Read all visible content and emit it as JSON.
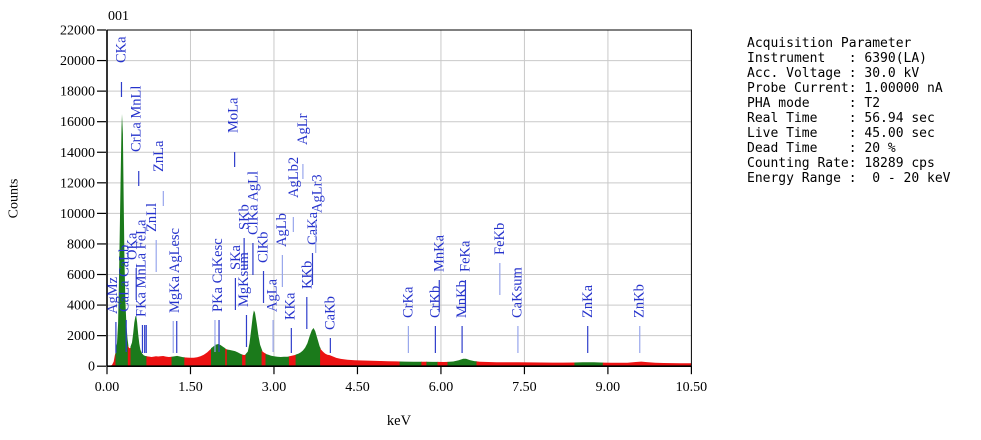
{
  "title": "001",
  "axes": {
    "x_label": "keV",
    "y_label": "Counts",
    "x_tick_values": [
      0,
      1.5,
      3,
      4.5,
      6,
      7.5,
      9,
      10.5
    ],
    "x_tick_labels": [
      "0.00",
      "1.50",
      "3.00",
      "4.50",
      "6.00",
      "7.50",
      "9.00",
      "10.50"
    ],
    "y_tick_values": [
      0,
      2000,
      4000,
      6000,
      8000,
      10000,
      12000,
      14000,
      16000,
      18000,
      20000,
      22000
    ]
  },
  "acquisition": {
    "lines": [
      "Acquisition Parameter",
      "Instrument   : 6390(LA)",
      "Acc. Voltage : 30.0 kV",
      "Probe Current: 1.00000 nA",
      "PHA mode     : T2",
      "Real Time    : 56.94 sec",
      "Live Time    : 45.00 sec",
      "Dead Time    : 20 %",
      "Counting Rate: 18289 cps",
      "Energy Range :  0 - 20 keV"
    ]
  },
  "chart_data": {
    "type": "area",
    "title": "001",
    "xlabel": "keV",
    "ylabel": "Counts",
    "xlim": [
      0,
      10.5
    ],
    "ylim": [
      0,
      22000
    ],
    "x_tick_step": 1.5,
    "y_tick_step": 2000,
    "grid": true,
    "colors": {
      "spectrum_red": "#ec1212",
      "spectrum_green": "#1b7a1b",
      "peak_label_blue": "#2633cc",
      "tick_dark_blue": "#2f3ecb",
      "tick_light_blue": "#98a6ec",
      "grid_gray": "#c9c9c9",
      "axis_black": "#000000"
    },
    "spectrum_points": [
      [
        0.0,
        0
      ],
      [
        0.05,
        20
      ],
      [
        0.09,
        80
      ],
      [
        0.12,
        300
      ],
      [
        0.14,
        700
      ],
      [
        0.165,
        1050
      ],
      [
        0.18,
        1500
      ],
      [
        0.2,
        2800
      ],
      [
        0.22,
        6500
      ],
      [
        0.245,
        12200
      ],
      [
        0.26,
        15600
      ],
      [
        0.27,
        16500
      ],
      [
        0.285,
        15200
      ],
      [
        0.3,
        10800
      ],
      [
        0.315,
        6800
      ],
      [
        0.33,
        4200
      ],
      [
        0.35,
        2600
      ],
      [
        0.37,
        1750
      ],
      [
        0.385,
        1350
      ],
      [
        0.4,
        1180
      ],
      [
        0.42,
        1200
      ],
      [
        0.435,
        1280
      ],
      [
        0.45,
        1550
      ],
      [
        0.47,
        2150
      ],
      [
        0.49,
        2850
      ],
      [
        0.51,
        3250
      ],
      [
        0.525,
        3300
      ],
      [
        0.54,
        2880
      ],
      [
        0.56,
        2100
      ],
      [
        0.58,
        1480
      ],
      [
        0.6,
        1080
      ],
      [
        0.63,
        830
      ],
      [
        0.66,
        720
      ],
      [
        0.69,
        670
      ],
      [
        0.72,
        650
      ],
      [
        0.76,
        625
      ],
      [
        0.8,
        605
      ],
      [
        0.84,
        625
      ],
      [
        0.88,
        655
      ],
      [
        0.92,
        635
      ],
      [
        0.96,
        645
      ],
      [
        1.01,
        665
      ],
      [
        1.06,
        625
      ],
      [
        1.11,
        605
      ],
      [
        1.17,
        620
      ],
      [
        1.22,
        655
      ],
      [
        1.26,
        675
      ],
      [
        1.31,
        635
      ],
      [
        1.36,
        595
      ],
      [
        1.4,
        575
      ],
      [
        1.45,
        560
      ],
      [
        1.5,
        552
      ],
      [
        1.56,
        558
      ],
      [
        1.62,
        582
      ],
      [
        1.68,
        645
      ],
      [
        1.74,
        745
      ],
      [
        1.8,
        905
      ],
      [
        1.86,
        1105
      ],
      [
        1.9,
        1255
      ],
      [
        1.95,
        1405
      ],
      [
        2.0,
        1450
      ],
      [
        2.04,
        1385
      ],
      [
        2.08,
        1285
      ],
      [
        2.12,
        1185
      ],
      [
        2.135,
        1135
      ],
      [
        2.165,
        1095
      ],
      [
        2.2,
        1065
      ],
      [
        2.25,
        1025
      ],
      [
        2.3,
        985
      ],
      [
        2.35,
        905
      ],
      [
        2.4,
        805
      ],
      [
        2.44,
        745
      ],
      [
        2.47,
        735
      ],
      [
        2.5,
        785
      ],
      [
        2.53,
        955
      ],
      [
        2.56,
        1500
      ],
      [
        2.59,
        2400
      ],
      [
        2.62,
        3300
      ],
      [
        2.64,
        3650
      ],
      [
        2.66,
        3500
      ],
      [
        2.69,
        2800
      ],
      [
        2.72,
        2000
      ],
      [
        2.75,
        1400
      ],
      [
        2.79,
        1010
      ],
      [
        2.82,
        890
      ],
      [
        2.86,
        805
      ],
      [
        2.9,
        745
      ],
      [
        2.95,
        685
      ],
      [
        3.0,
        645
      ],
      [
        3.06,
        615
      ],
      [
        3.12,
        602
      ],
      [
        3.18,
        612
      ],
      [
        3.24,
        622
      ],
      [
        3.28,
        642
      ],
      [
        3.32,
        682
      ],
      [
        3.36,
        722
      ],
      [
        3.4,
        762
      ],
      [
        3.44,
        822
      ],
      [
        3.48,
        902
      ],
      [
        3.52,
        1025
      ],
      [
        3.56,
        1205
      ],
      [
        3.6,
        1505
      ],
      [
        3.64,
        1955
      ],
      [
        3.68,
        2355
      ],
      [
        3.71,
        2500
      ],
      [
        3.74,
        2300
      ],
      [
        3.78,
        1805
      ],
      [
        3.82,
        1305
      ],
      [
        3.84,
        1155
      ],
      [
        3.88,
        955
      ],
      [
        3.92,
        825
      ],
      [
        3.96,
        755
      ],
      [
        4.0,
        725
      ],
      [
        4.05,
        645
      ],
      [
        4.12,
        545
      ],
      [
        4.2,
        475
      ],
      [
        4.32,
        425
      ],
      [
        4.45,
        395
      ],
      [
        4.6,
        372
      ],
      [
        4.75,
        358
      ],
      [
        4.9,
        342
      ],
      [
        5.05,
        328
      ],
      [
        5.2,
        312
      ],
      [
        5.35,
        302
      ],
      [
        5.5,
        296
      ],
      [
        5.62,
        288
      ],
      [
        5.72,
        292
      ],
      [
        5.85,
        284
      ],
      [
        5.95,
        280
      ],
      [
        6.05,
        276
      ],
      [
        6.13,
        280
      ],
      [
        6.22,
        305
      ],
      [
        6.32,
        390
      ],
      [
        6.4,
        490
      ],
      [
        6.45,
        482
      ],
      [
        6.52,
        402
      ],
      [
        6.6,
        332
      ],
      [
        6.7,
        292
      ],
      [
        6.85,
        272
      ],
      [
        7.0,
        264
      ],
      [
        7.2,
        256
      ],
      [
        7.4,
        252
      ],
      [
        7.6,
        246
      ],
      [
        7.8,
        242
      ],
      [
        8.0,
        238
      ],
      [
        8.2,
        236
      ],
      [
        8.41,
        242
      ],
      [
        8.55,
        256
      ],
      [
        8.65,
        264
      ],
      [
        8.75,
        252
      ],
      [
        8.92,
        236
      ],
      [
        9.05,
        226
      ],
      [
        9.2,
        221
      ],
      [
        9.35,
        229
      ],
      [
        9.5,
        276
      ],
      [
        9.6,
        301
      ],
      [
        9.7,
        271
      ],
      [
        9.85,
        231
      ],
      [
        10.0,
        207
      ],
      [
        10.15,
        201
      ],
      [
        10.3,
        196
      ],
      [
        10.5,
        189
      ]
    ],
    "color_segments": [
      [
        0.0,
        0.165,
        "red"
      ],
      [
        0.165,
        0.385,
        "green"
      ],
      [
        0.385,
        0.435,
        "red"
      ],
      [
        0.435,
        0.72,
        "green"
      ],
      [
        0.72,
        1.17,
        "red"
      ],
      [
        1.17,
        1.4,
        "green"
      ],
      [
        1.4,
        1.88,
        "red"
      ],
      [
        1.88,
        2.135,
        "green"
      ],
      [
        2.135,
        2.165,
        "red"
      ],
      [
        2.165,
        2.44,
        "green"
      ],
      [
        2.44,
        2.5,
        "red"
      ],
      [
        2.5,
        2.79,
        "green"
      ],
      [
        2.79,
        2.86,
        "red"
      ],
      [
        2.86,
        3.28,
        "green"
      ],
      [
        3.28,
        3.4,
        "red"
      ],
      [
        3.4,
        3.84,
        "green"
      ],
      [
        3.84,
        5.27,
        "red"
      ],
      [
        5.27,
        5.66,
        "green"
      ],
      [
        5.66,
        5.75,
        "red"
      ],
      [
        5.75,
        5.95,
        "green"
      ],
      [
        5.95,
        6.13,
        "red"
      ],
      [
        6.13,
        6.65,
        "green"
      ],
      [
        6.65,
        8.41,
        "red"
      ],
      [
        8.41,
        8.92,
        "green"
      ],
      [
        8.92,
        10.5,
        "red"
      ]
    ],
    "peak_labels": [
      {
        "text": "CKa",
        "label_kev": 0.26,
        "bottom_y": 63,
        "ticks": [
          {
            "kev": 0.26
          }
        ]
      },
      {
        "text": "AgMz",
        "label_kev": 0.11,
        "bottom_y": 314,
        "ticks": [
          {
            "kev": 0.16
          }
        ]
      },
      {
        "text": "CaLa CaLb",
        "label_kev": 0.31,
        "bottom_y": 312,
        "ticks": [
          {
            "kev": 0.345
          }
        ]
      },
      {
        "text": "OKa",
        "label_kev": 0.46,
        "bottom_y": 260,
        "ticks": [
          {
            "kev": 0.525
          }
        ]
      },
      {
        "text": "CrLa MnLl",
        "label_kev": 0.53,
        "bottom_y": 152,
        "ticks": [
          {
            "kev": 0.57
          }
        ]
      },
      {
        "text": "FKa MnLa FeLa",
        "label_kev": 0.62,
        "bottom_y": 317,
        "ticks": [
          {
            "kev": 0.637
          },
          {
            "kev": 0.677
          },
          {
            "kev": 0.705
          }
        ]
      },
      {
        "text": "ZnLl",
        "label_kev": 0.81,
        "bottom_y": 232,
        "ticks": [
          {
            "kev": 0.884,
            "light": true
          }
        ]
      },
      {
        "text": "ZnLa",
        "label_kev": 0.93,
        "bottom_y": 172,
        "ticks": [
          {
            "kev": 1.012,
            "light": true
          }
        ]
      },
      {
        "text": "MgKa AgLesc",
        "label_kev": 1.22,
        "bottom_y": 313,
        "ticks": [
          {
            "kev": 1.19,
            "light": true
          },
          {
            "kev": 1.253
          }
        ]
      },
      {
        "text": "PKa CaKesc",
        "label_kev": 1.99,
        "bottom_y": 312,
        "ticks": [
          {
            "kev": 1.94,
            "light": true
          },
          {
            "kev": 2.013
          }
        ]
      },
      {
        "text": "MoLa",
        "label_kev": 2.27,
        "bottom_y": 133,
        "ticks": [
          {
            "kev": 2.293
          }
        ]
      },
      {
        "text": "SKa",
        "label_kev": 2.32,
        "bottom_y": 270,
        "ticks": [
          {
            "kev": 2.307
          }
        ]
      },
      {
        "text": "SKb",
        "label_kev": 2.47,
        "bottom_y": 230,
        "ticks": [
          {
            "kev": 2.464
          }
        ]
      },
      {
        "text": "MgKsum",
        "label_kev": 2.46,
        "bottom_y": 307,
        "ticks": [
          {
            "kev": 2.506
          }
        ]
      },
      {
        "text": "ClKa AgLl",
        "label_kev": 2.63,
        "bottom_y": 235,
        "ticks": [
          {
            "kev": 2.622
          }
        ]
      },
      {
        "text": "ClKb",
        "label_kev": 2.81,
        "bottom_y": 263,
        "ticks": [
          {
            "kev": 2.812
          }
        ]
      },
      {
        "text": "AgLa",
        "label_kev": 2.97,
        "bottom_y": 312,
        "ticks": [
          {
            "kev": 2.984,
            "light": true
          }
        ]
      },
      {
        "text": "AgLb",
        "label_kev": 3.14,
        "bottom_y": 247,
        "ticks": [
          {
            "kev": 3.151,
            "light": true
          }
        ]
      },
      {
        "text": "KKa",
        "label_kev": 3.3,
        "bottom_y": 320,
        "ticks": [
          {
            "kev": 3.312
          }
        ]
      },
      {
        "text": "AgLb2",
        "label_kev": 3.36,
        "bottom_y": 198,
        "ticks": [
          {
            "kev": 3.348,
            "light": true
          }
        ]
      },
      {
        "text": "AgLr",
        "label_kev": 3.52,
        "bottom_y": 145,
        "ticks": [
          {
            "kev": 3.52,
            "light": true
          }
        ]
      },
      {
        "text": "KKb",
        "label_kev": 3.6,
        "bottom_y": 289,
        "ticks": [
          {
            "kev": 3.59
          }
        ]
      },
      {
        "text": "CaKa",
        "label_kev": 3.7,
        "bottom_y": 245,
        "ticks": [
          {
            "kev": 3.692
          }
        ]
      },
      {
        "text": "AgLr3",
        "label_kev": 3.78,
        "bottom_y": 213,
        "ticks": [
          {
            "kev": 3.75,
            "light": true
          }
        ]
      },
      {
        "text": "CaKb",
        "label_kev": 4.02,
        "bottom_y": 330,
        "ticks": [
          {
            "kev": 4.013
          }
        ]
      },
      {
        "text": "CrKa",
        "label_kev": 5.42,
        "bottom_y": 318,
        "ticks": [
          {
            "kev": 5.415,
            "light": true
          }
        ]
      },
      {
        "text": "CrKb",
        "label_kev": 5.9,
        "bottom_y": 318,
        "ticks": [
          {
            "kev": 5.9
          }
        ]
      },
      {
        "text": "MnKa",
        "label_kev": 5.97,
        "bottom_y": 272,
        "ticks": [
          {
            "kev": 5.97
          }
        ]
      },
      {
        "text": "MnKb",
        "label_kev": 6.38,
        "bottom_y": 318,
        "ticks": [
          {
            "kev": 6.38
          }
        ]
      },
      {
        "text": "FeKa",
        "label_kev": 6.44,
        "bottom_y": 272,
        "ticks": [
          {
            "kev": 6.44
          }
        ]
      },
      {
        "text": "FeKb",
        "label_kev": 7.06,
        "bottom_y": 255,
        "ticks": [
          {
            "kev": 7.058,
            "light": true
          }
        ]
      },
      {
        "text": "CaKsum",
        "label_kev": 7.38,
        "bottom_y": 318,
        "ticks": [
          {
            "kev": 7.383,
            "light": true
          }
        ]
      },
      {
        "text": "ZnKa",
        "label_kev": 8.64,
        "bottom_y": 318,
        "ticks": [
          {
            "kev": 8.637
          }
        ]
      },
      {
        "text": "ZnKb",
        "label_kev": 9.57,
        "bottom_y": 318,
        "ticks": [
          {
            "kev": 9.572,
            "light": true
          }
        ]
      }
    ]
  }
}
